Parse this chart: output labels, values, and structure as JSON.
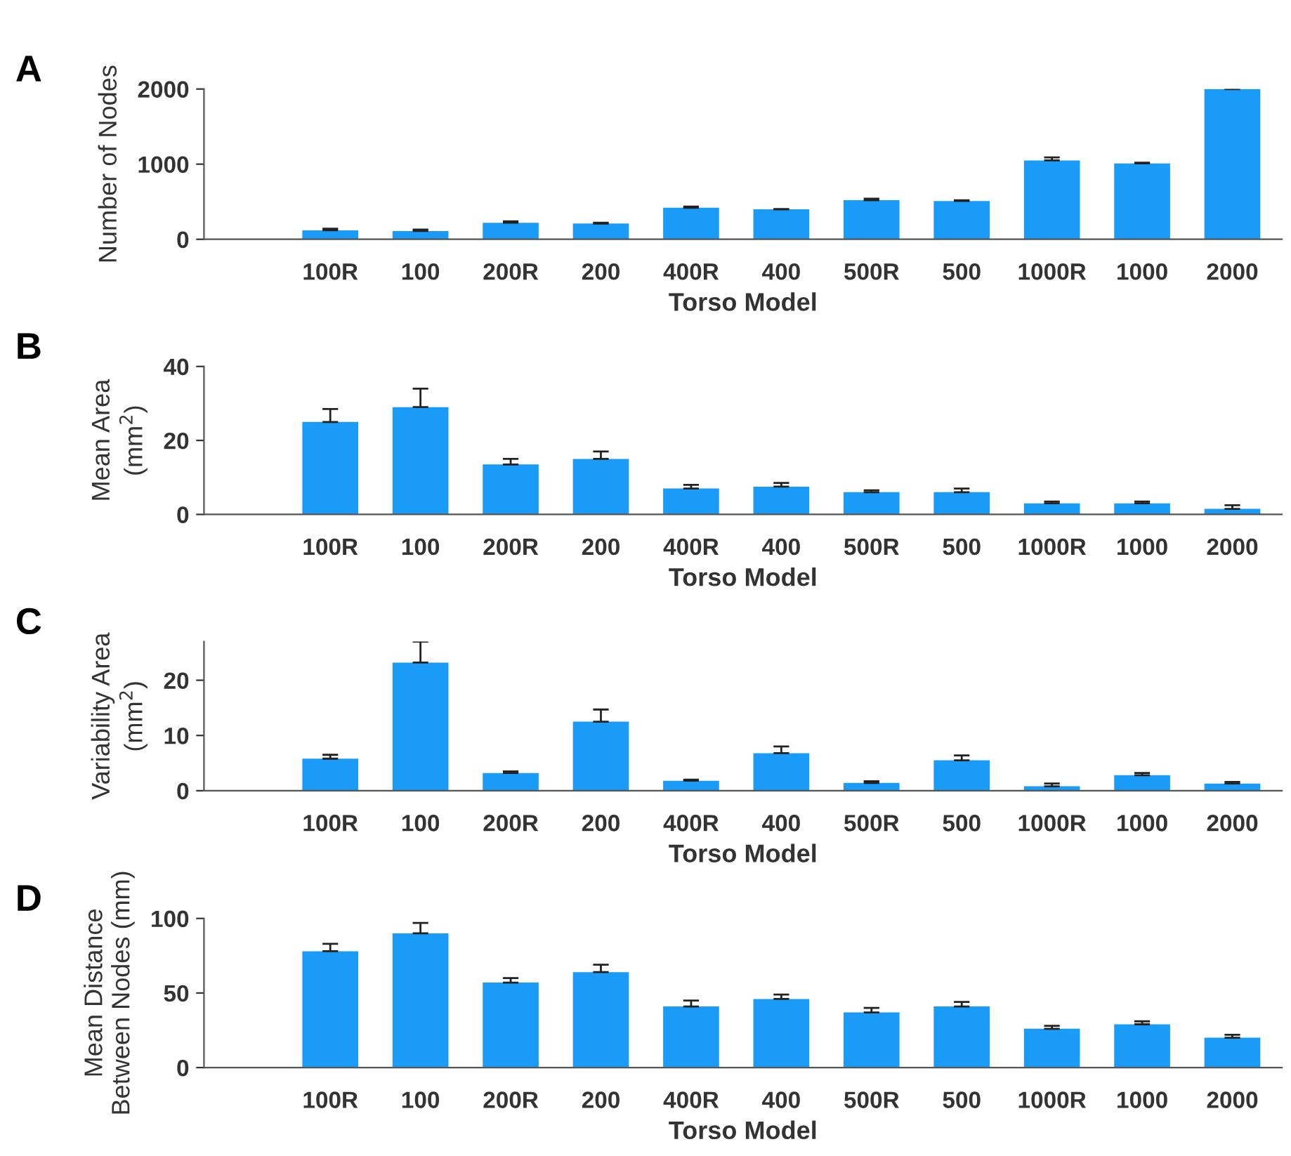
{
  "chart_data": [
    {
      "type": "bar",
      "title": "A",
      "xlabel": "Torso Model",
      "ylabel": "Number of Nodes",
      "categories": [
        "100R",
        "100",
        "200R",
        "200",
        "400R",
        "400",
        "500R",
        "500",
        "1000R",
        "1000",
        "2000"
      ],
      "color": "#1a9bf7",
      "values": [
        120,
        110,
        220,
        210,
        420,
        400,
        520,
        510,
        1050,
        1010,
        2000
      ],
      "errors": [
        [
          120,
          140
        ],
        [
          110,
          130
        ],
        [
          220,
          240
        ],
        [
          210,
          220
        ],
        [
          420,
          435
        ],
        [
          400,
          400
        ],
        [
          520,
          540
        ],
        [
          510,
          520
        ],
        [
          1050,
          1090
        ],
        [
          1010,
          1020
        ],
        [
          2000,
          2005
        ]
      ],
      "ylim": [
        0,
        2000
      ],
      "yticks": [
        0,
        1000,
        2000
      ],
      "grid": false,
      "legend": false
    },
    {
      "type": "bar",
      "title": "B",
      "xlabel": "Torso Model",
      "ylabel": "Mean Area\n(mm$^{2}$)",
      "categories": [
        "100R",
        "100",
        "200R",
        "200",
        "400R",
        "400",
        "500R",
        "500",
        "1000R",
        "1000",
        "2000"
      ],
      "color": "#1a9bf7",
      "values": [
        25,
        29,
        13.5,
        15,
        7,
        7.5,
        6,
        6,
        3,
        3,
        1.5
      ],
      "errors": [
        [
          25,
          28.5
        ],
        [
          29,
          34
        ],
        [
          13.5,
          15
        ],
        [
          15,
          17
        ],
        [
          7,
          8
        ],
        [
          7.5,
          8.5
        ],
        [
          6,
          6.5
        ],
        [
          6,
          7
        ],
        [
          3,
          3.5
        ],
        [
          3,
          3.5
        ],
        [
          1.5,
          2.5
        ]
      ],
      "ylim": [
        0,
        40
      ],
      "yticks": [
        0,
        20,
        40
      ],
      "grid": false,
      "legend": false
    },
    {
      "type": "bar",
      "title": "C",
      "xlabel": "Torso Model",
      "ylabel": "Variability Area\n(mm$^{2}$)",
      "categories": [
        "100R",
        "100",
        "200R",
        "200",
        "400R",
        "400",
        "500R",
        "500",
        "1000R",
        "1000",
        "2000"
      ],
      "color": "#1a9bf7",
      "values": [
        5.8,
        23.2,
        3.2,
        12.5,
        1.8,
        6.8,
        1.4,
        5.5,
        0.8,
        2.8,
        1.3
      ],
      "errors": [
        [
          5.8,
          6.5
        ],
        [
          23.2,
          27
        ],
        [
          3.2,
          3.5
        ],
        [
          12.5,
          14.7
        ],
        [
          1.8,
          2
        ],
        [
          6.8,
          8
        ],
        [
          1.4,
          1.7
        ],
        [
          5.5,
          6.4
        ],
        [
          0.8,
          1.3
        ],
        [
          2.8,
          3.2
        ],
        [
          1.3,
          1.6
        ]
      ],
      "ylim": [
        0,
        27
      ],
      "yticks": [
        0,
        10,
        20
      ],
      "grid": false,
      "legend": false
    },
    {
      "type": "bar",
      "title": "D",
      "xlabel": "Torso Model",
      "ylabel": "Mean Distance\nBetween Nodes (mm)",
      "categories": [
        "100R",
        "100",
        "200R",
        "200",
        "400R",
        "400",
        "500R",
        "500",
        "1000R",
        "1000",
        "2000"
      ],
      "color": "#1a9bf7",
      "values": [
        78,
        90,
        57,
        64,
        41,
        46,
        37,
        41,
        26,
        29,
        20
      ],
      "errors": [
        [
          78,
          83
        ],
        [
          90,
          97
        ],
        [
          57,
          60
        ],
        [
          64,
          69
        ],
        [
          41,
          45
        ],
        [
          46,
          49
        ],
        [
          37,
          40
        ],
        [
          41,
          44
        ],
        [
          26,
          28
        ],
        [
          29,
          31
        ],
        [
          20,
          22
        ]
      ],
      "ylim": [
        0,
        100
      ],
      "yticks": [
        0,
        50,
        100
      ],
      "grid": false,
      "legend": false
    }
  ]
}
